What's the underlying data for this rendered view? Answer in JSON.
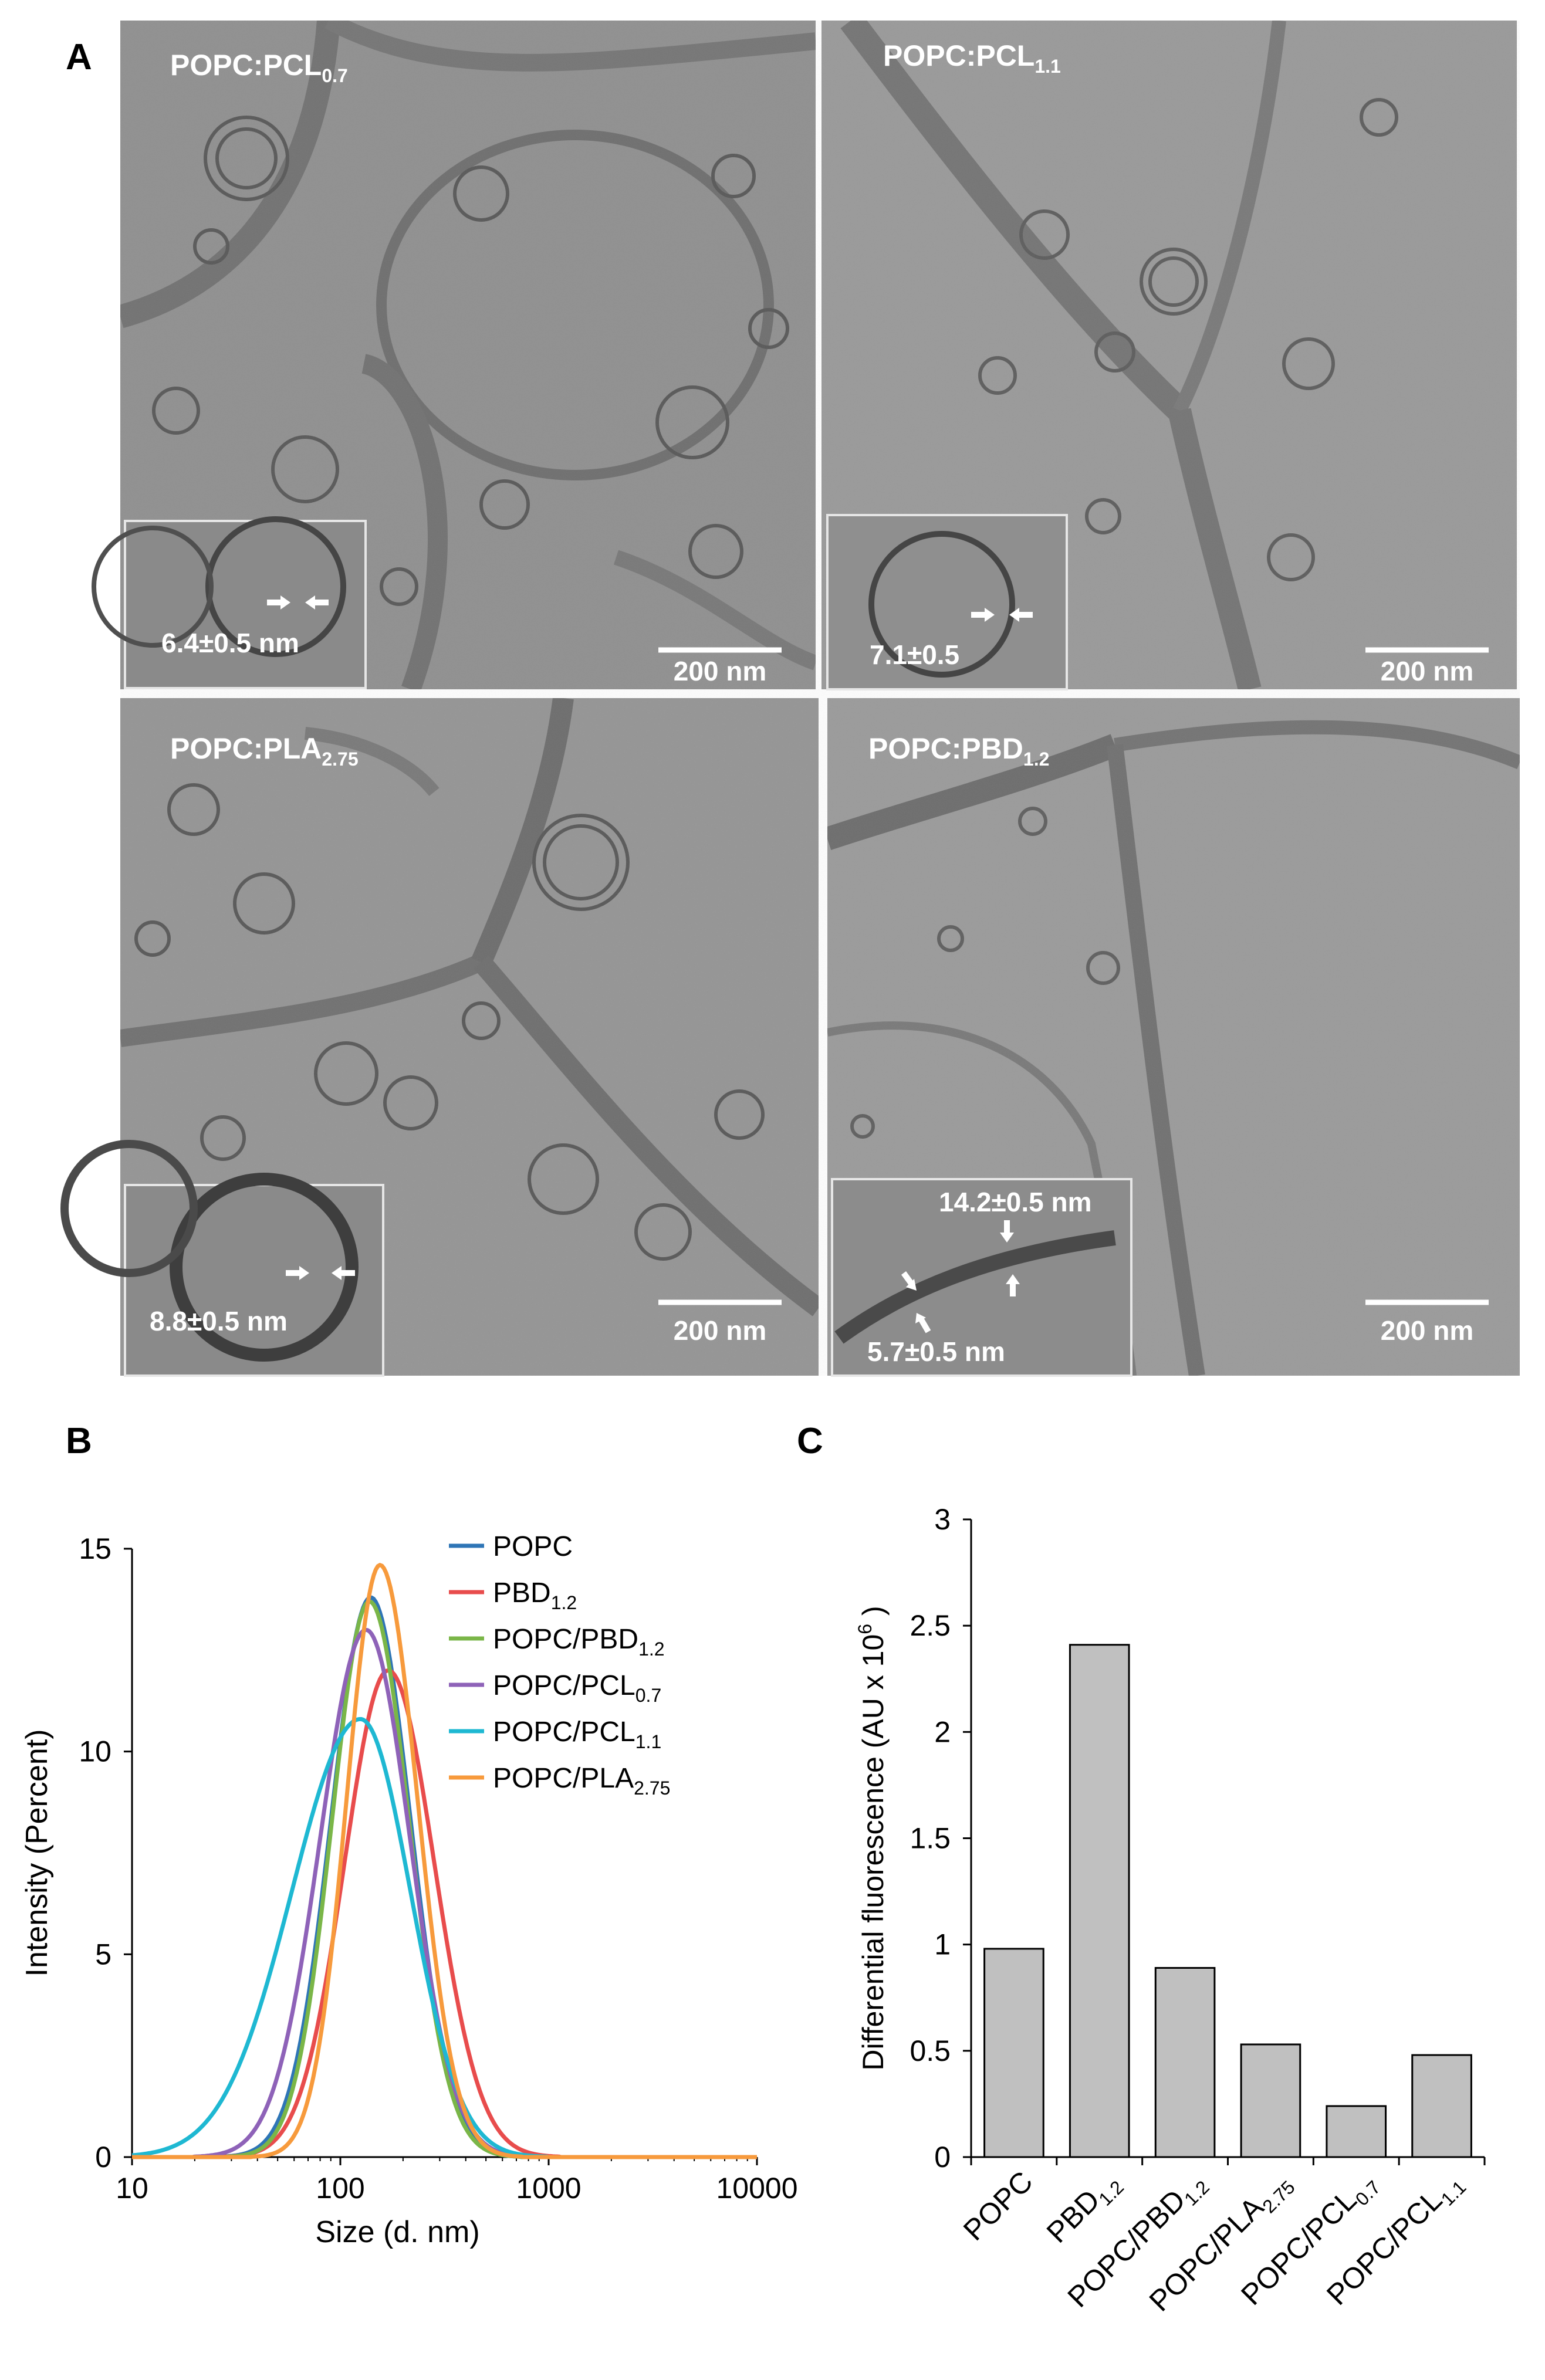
{
  "panel_a": {
    "letter": "A",
    "scale_bar_label": "200 nm",
    "images": [
      {
        "label_main": "POPC:PCL",
        "label_sub": "0.7",
        "inset_measurements": [
          "6.4±0.5 nm"
        ]
      },
      {
        "label_main": "POPC:PCL",
        "label_sub": "1.1",
        "inset_measurements": [
          "7.1±0.5"
        ]
      },
      {
        "label_main": "POPC:PLA",
        "label_sub": "2.75",
        "inset_measurements": [
          "8.8±0.5 nm"
        ]
      },
      {
        "label_main": "POPC:PBD",
        "label_sub": "1.2",
        "inset_measurements": [
          "14.2±0.5 nm",
          "5.7±0.5 nm"
        ]
      }
    ]
  },
  "chart_data": [
    {
      "panel": "B",
      "type": "line",
      "xlabel": "Size (d. nm)",
      "ylabel": "Intensity (Percent)",
      "xscale": "log",
      "xlim": [
        10,
        10000
      ],
      "ylim": [
        0,
        15
      ],
      "xticks": [
        10,
        100,
        1000,
        10000
      ],
      "yticks": [
        0,
        5,
        10,
        15
      ],
      "grid": false,
      "legend_position": "top-right",
      "series": [
        {
          "name": "POPC",
          "name_sub": "",
          "color": "#2e75b6",
          "peak_x": 140,
          "peak_y": 13.8,
          "sigma": 0.19,
          "left_sigma": 0.19,
          "right_sigma": 0.19
        },
        {
          "name": "PBD",
          "name_sub": "1.2",
          "color": "#e84c4c",
          "peak_x": 170,
          "peak_y": 12.0,
          "sigma": 0.23,
          "left_sigma": 0.21,
          "right_sigma": 0.22
        },
        {
          "name": "POPC/PBD",
          "name_sub": "1.2",
          "color": "#7ab648",
          "peak_x": 138,
          "peak_y": 13.7,
          "sigma": 0.19,
          "left_sigma": 0.18,
          "right_sigma": 0.19
        },
        {
          "name": "POPC/PCL",
          "name_sub": "0.7",
          "color": "#8e62b8",
          "peak_x": 133,
          "peak_y": 13.0,
          "sigma": 0.21,
          "left_sigma": 0.22,
          "right_sigma": 0.21
        },
        {
          "name": "POPC/PCL",
          "name_sub": "1.1",
          "color": "#1eb8d2",
          "peak_x": 125,
          "peak_y": 10.8,
          "sigma": 0.28,
          "left_sigma": 0.33,
          "right_sigma": 0.24
        },
        {
          "name": "POPC/PLA",
          "name_sub": "2.75",
          "color": "#f79a3c",
          "peak_x": 155,
          "peak_y": 14.6,
          "sigma": 0.17,
          "left_sigma": 0.16,
          "right_sigma": 0.18
        }
      ]
    },
    {
      "panel": "C",
      "type": "bar",
      "ylabel_pre": "Differential fluorescence (AU x 10",
      "ylabel_sup": "6",
      "ylabel_post": " )",
      "ylim": [
        0,
        3
      ],
      "yticks": [
        "0",
        "0.5",
        "1",
        "1.5",
        "2",
        "2.5",
        "3"
      ],
      "bar_color": "#c0c0c0",
      "categories": [
        {
          "main": "POPC",
          "sub": ""
        },
        {
          "main": "PBD",
          "sub": "1.2"
        },
        {
          "main": "POPC/PBD",
          "sub": "1.2"
        },
        {
          "main": "POPC/PLA",
          "sub": "2.75"
        },
        {
          "main": "POPC/PCL",
          "sub": "0.7"
        },
        {
          "main": "POPC/PCL",
          "sub": "1.1"
        }
      ],
      "values": [
        0.98,
        2.41,
        0.89,
        0.53,
        0.24,
        0.48
      ]
    }
  ]
}
